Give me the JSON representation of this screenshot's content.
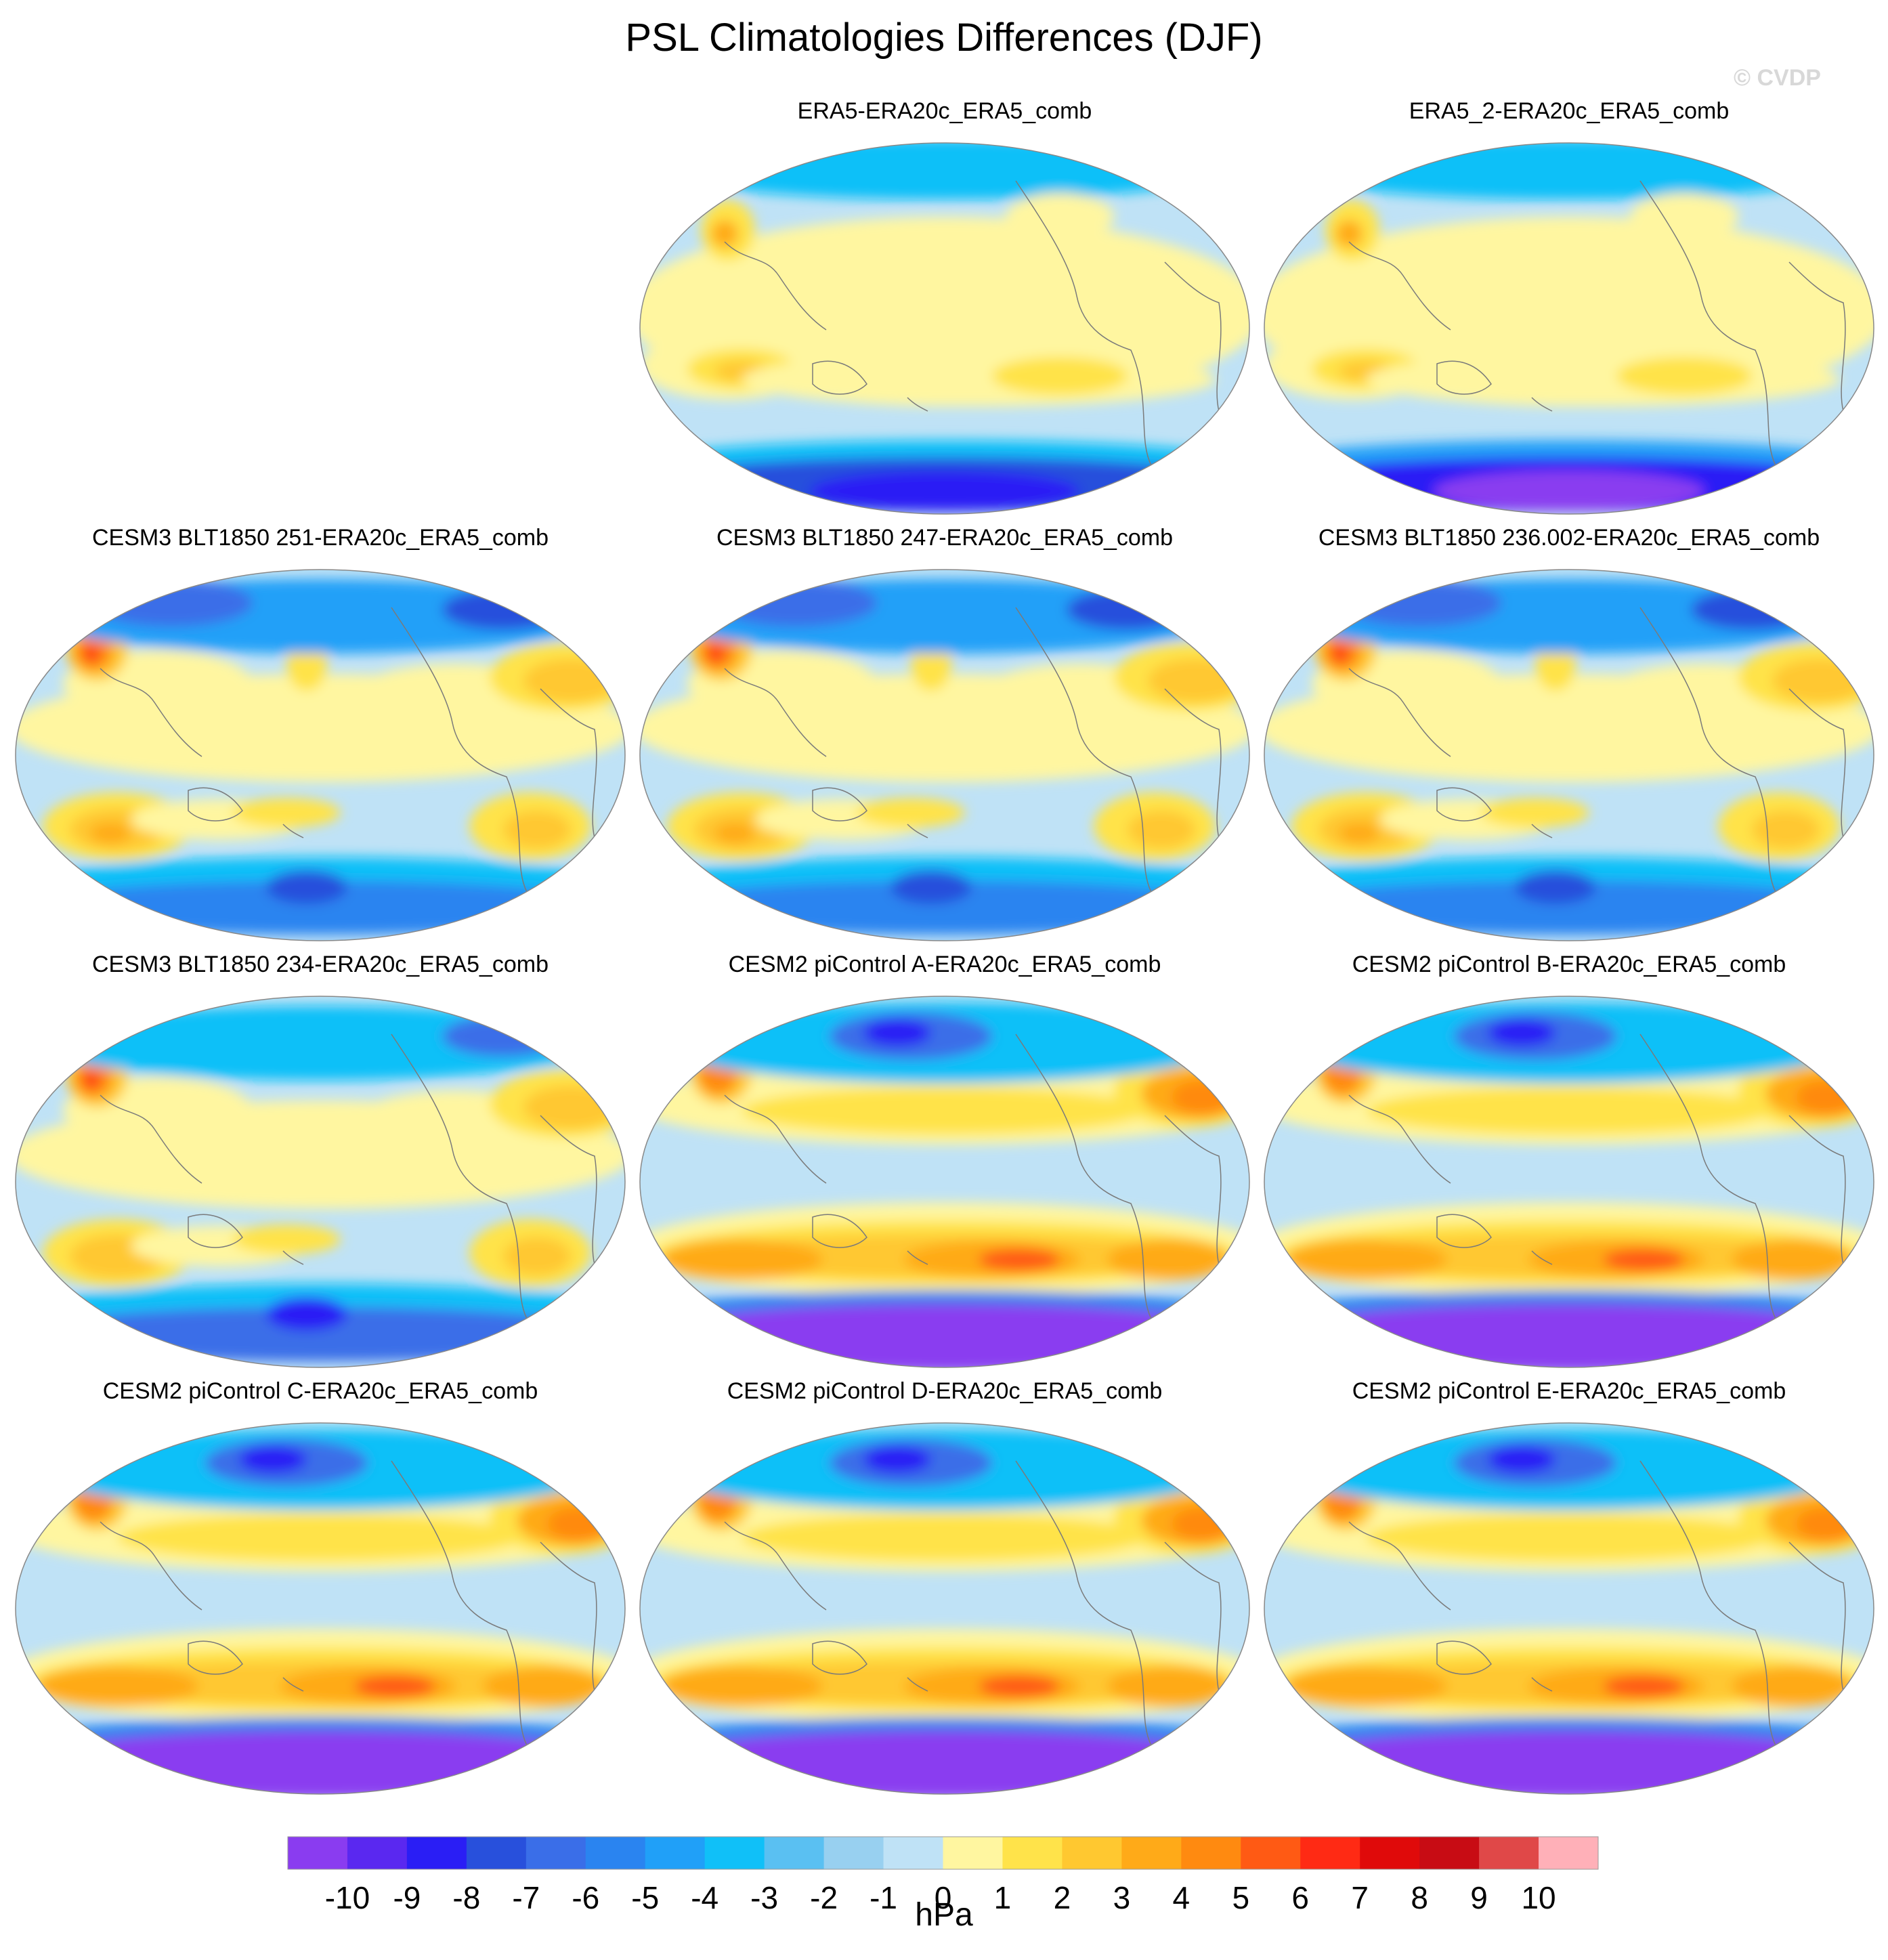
{
  "title": "PSL Climatologies Differences (DJF)",
  "watermark": "© CVDP",
  "panels": [
    {
      "label": "ERA5-ERA20c_ERA5_comb",
      "style": "era5a"
    },
    {
      "label": "ERA5_2-ERA20c_ERA5_comb",
      "style": "era5b"
    },
    {
      "label": "CESM3 BLT1850 251-ERA20c_ERA5_comb",
      "style": "cesm3"
    },
    {
      "label": "CESM3 BLT1850 247-ERA20c_ERA5_comb",
      "style": "cesm3"
    },
    {
      "label": "CESM3 BLT1850 236.002-ERA20c_ERA5_comb",
      "style": "cesm3"
    },
    {
      "label": "CESM3 BLT1850 234-ERA20c_ERA5_comb",
      "style": "cesm3b"
    },
    {
      "label": "CESM2 piControl A-ERA20c_ERA5_comb",
      "style": "cesm2"
    },
    {
      "label": "CESM2 piControl B-ERA20c_ERA5_comb",
      "style": "cesm2"
    },
    {
      "label": "CESM2 piControl C-ERA20c_ERA5_comb",
      "style": "cesm2"
    },
    {
      "label": "CESM2 piControl D-ERA20c_ERA5_comb",
      "style": "cesm2"
    },
    {
      "label": "CESM2 piControl E-ERA20c_ERA5_comb",
      "style": "cesm2"
    }
  ],
  "colorbar": {
    "unit": "hPa",
    "tick_labels": [
      "-10",
      "-9",
      "-8",
      "-7",
      "-6",
      "-5",
      "-4",
      "-3",
      "-2",
      "-1",
      "0",
      "1",
      "2",
      "3",
      "4",
      "5",
      "6",
      "7",
      "8",
      "9",
      "10"
    ],
    "colors": [
      "#8a3cf0",
      "#5a28f0",
      "#2a1ef5",
      "#2850dc",
      "#3a6ee8",
      "#2a84f0",
      "#20a0f8",
      "#10c0f8",
      "#5ac0f2",
      "#98d0f0",
      "#bfe2f6",
      "#fff6a0",
      "#ffe34a",
      "#ffc830",
      "#ffaa18",
      "#ff8a10",
      "#ff5a14",
      "#ff2a14",
      "#e00a0a",
      "#c80c14",
      "#e04848",
      "#ffb0b8"
    ]
  }
}
